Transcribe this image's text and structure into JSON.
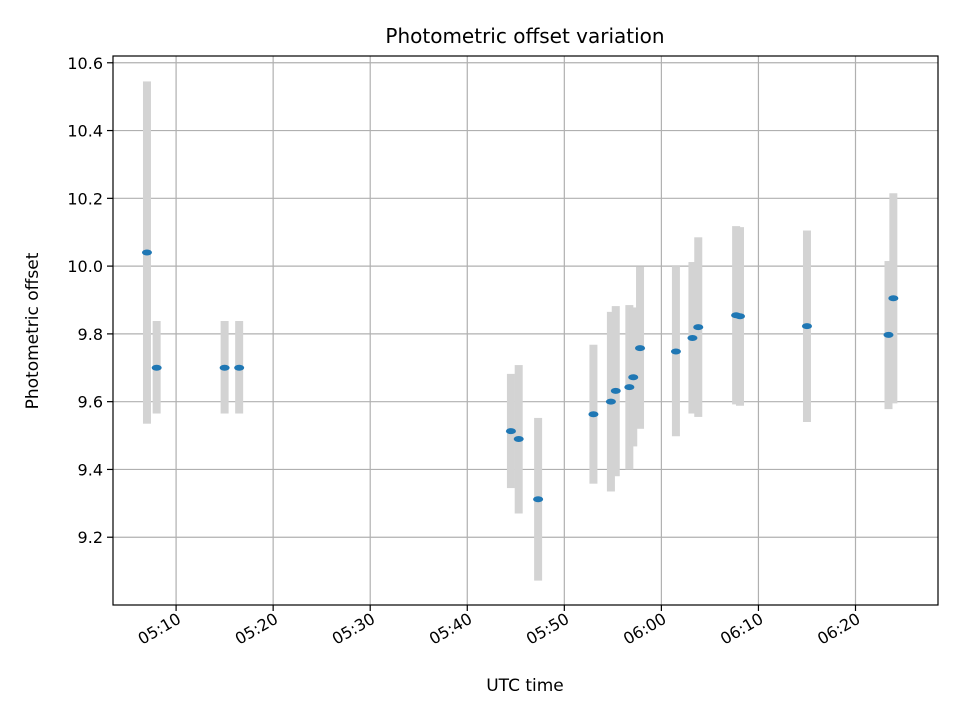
{
  "chart_data": {
    "type": "scatter",
    "title": "Photometric offset variation",
    "xlabel": "UTC time",
    "ylabel": "Photometric offset",
    "x_ticks": [
      "05:10",
      "05:20",
      "05:30",
      "05:40",
      "05:50",
      "06:00",
      "06:10",
      "06:20"
    ],
    "x_tick_minutes": [
      310,
      320,
      330,
      340,
      350,
      360,
      370,
      380
    ],
    "y_ticks": [
      "9.2",
      "9.4",
      "9.6",
      "9.8",
      "10.0",
      "10.2",
      "10.4",
      "10.6"
    ],
    "y_tick_values": [
      9.2,
      9.4,
      9.6,
      9.8,
      10.0,
      10.2,
      10.4,
      10.6
    ],
    "xlim": [
      "05:03:30",
      "06:28:30"
    ],
    "ylim": [
      9.0,
      10.62
    ],
    "grid": true,
    "marker_color": "#1f77b4",
    "errorbar_color": "#d3d3d3",
    "points": [
      {
        "time": "05:07:00",
        "y": 10.04,
        "err_low": 9.535,
        "err_high": 10.545
      },
      {
        "time": "05:08:00",
        "y": 9.7,
        "err_low": 9.565,
        "err_high": 9.838
      },
      {
        "time": "05:15:00",
        "y": 9.7,
        "err_low": 9.565,
        "err_high": 9.838
      },
      {
        "time": "05:16:30",
        "y": 9.7,
        "err_low": 9.565,
        "err_high": 9.838
      },
      {
        "time": "05:44:30",
        "y": 9.513,
        "err_low": 9.345,
        "err_high": 9.682
      },
      {
        "time": "05:45:18",
        "y": 9.49,
        "err_low": 9.27,
        "err_high": 9.708
      },
      {
        "time": "05:47:18",
        "y": 9.312,
        "err_low": 9.072,
        "err_high": 9.552
      },
      {
        "time": "05:53:00",
        "y": 9.563,
        "err_low": 9.358,
        "err_high": 9.768
      },
      {
        "time": "05:54:48",
        "y": 9.6,
        "err_low": 9.335,
        "err_high": 9.865
      },
      {
        "time": "05:55:18",
        "y": 9.632,
        "err_low": 9.38,
        "err_high": 9.882
      },
      {
        "time": "05:56:42",
        "y": 9.643,
        "err_low": 9.4,
        "err_high": 9.885
      },
      {
        "time": "05:57:06",
        "y": 9.672,
        "err_low": 9.468,
        "err_high": 9.878
      },
      {
        "time": "05:57:48",
        "y": 9.758,
        "err_low": 9.52,
        "err_high": 9.998
      },
      {
        "time": "06:01:30",
        "y": 9.748,
        "err_low": 9.498,
        "err_high": 10.0
      },
      {
        "time": "06:03:12",
        "y": 9.788,
        "err_low": 9.565,
        "err_high": 10.012
      },
      {
        "time": "06:03:48",
        "y": 9.82,
        "err_low": 9.555,
        "err_high": 10.085
      },
      {
        "time": "06:07:42",
        "y": 9.855,
        "err_low": 9.592,
        "err_high": 10.118
      },
      {
        "time": "06:08:06",
        "y": 9.852,
        "err_low": 9.588,
        "err_high": 10.115
      },
      {
        "time": "06:15:00",
        "y": 9.823,
        "err_low": 9.54,
        "err_high": 10.105
      },
      {
        "time": "06:23:24",
        "y": 9.797,
        "err_low": 9.578,
        "err_high": 10.015
      },
      {
        "time": "06:23:54",
        "y": 9.905,
        "err_low": 9.595,
        "err_high": 10.215
      }
    ]
  }
}
